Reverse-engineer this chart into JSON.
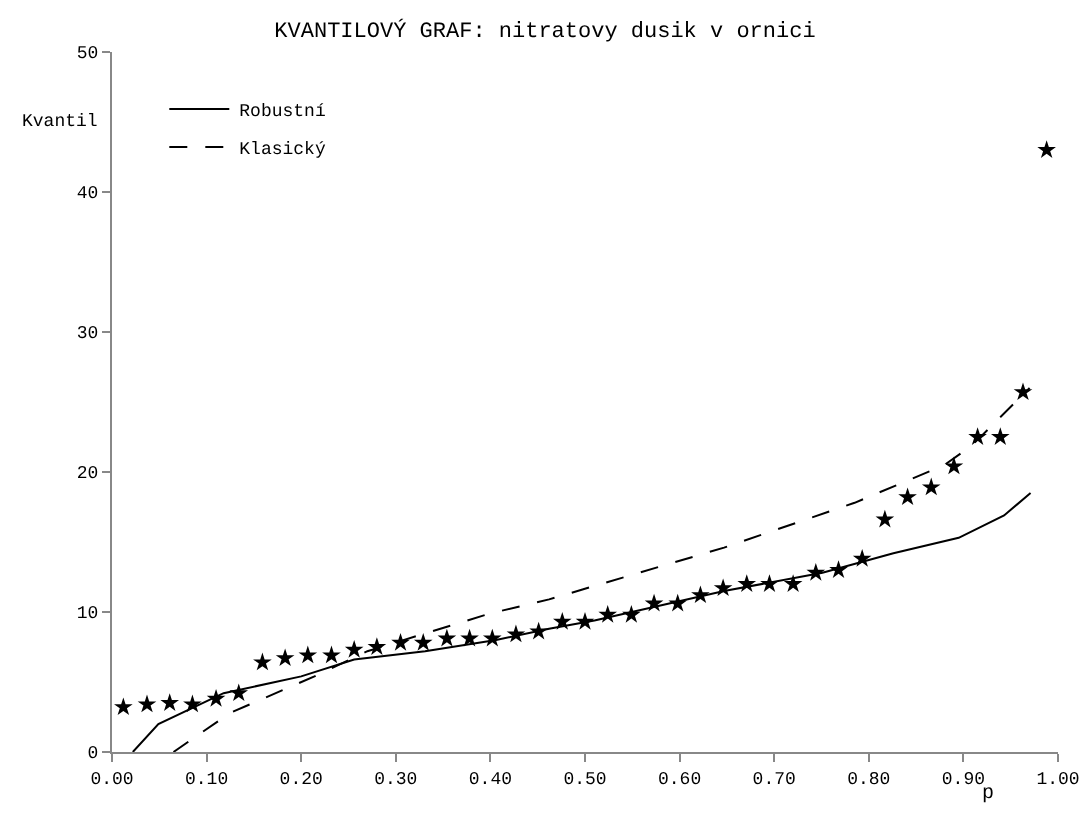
{
  "chart_data": {
    "type": "scatter",
    "title": "KVANTILOVÝ GRAF: nitratovy dusik v ornici",
    "xlabel": "p",
    "ylabel": "Kvantil",
    "xlim": [
      0,
      1
    ],
    "xticks": [
      {
        "value": 0,
        "label": "0.00"
      },
      {
        "value": 0.1,
        "label": "0.10"
      },
      {
        "value": 0.2,
        "label": "0.20"
      },
      {
        "value": 0.3,
        "label": "0.30"
      },
      {
        "value": 0.4,
        "label": "0.40"
      },
      {
        "value": 0.5,
        "label": "0.50"
      },
      {
        "value": 0.6,
        "label": "0.60"
      },
      {
        "value": 0.7,
        "label": "0.70"
      },
      {
        "value": 0.8,
        "label": "0.80"
      },
      {
        "value": 0.9,
        "label": "0.90"
      },
      {
        "value": 1,
        "label": "1.00"
      }
    ],
    "ylim": [
      0,
      50
    ],
    "yticks": [
      0,
      10,
      20,
      30,
      40,
      50
    ],
    "grid": false,
    "legend": "top left",
    "series": [
      {
        "type": "line",
        "name": "Robustní",
        "color": "#000000",
        "line_style": "solid",
        "x": [
          0.022,
          0.049,
          0.118,
          0.2,
          0.256,
          0.331,
          0.406,
          0.462,
          0.51,
          0.647,
          0.751,
          0.826,
          0.895,
          0.943,
          0.971
        ],
        "values": [
          0,
          2,
          4.2,
          5.4,
          6.6,
          7.2,
          8,
          8.8,
          9.4,
          11.5,
          12.8,
          14.2,
          15.3,
          16.9,
          18.5
        ]
      },
      {
        "type": "line",
        "name": "Klasický",
        "color": "#000000",
        "line_style": "dashed",
        "x": [
          0.065,
          0.125,
          0.214,
          0.27,
          0.4,
          0.462,
          0.647,
          0.785,
          0.88,
          0.909,
          0.97
        ],
        "values": [
          0,
          2.8,
          5.4,
          7.2,
          9.9,
          10.9,
          14.6,
          17.8,
          20.5,
          21.9,
          26
        ]
      },
      {
        "marker": "star",
        "color": "#000000",
        "x": [
          0.012,
          0.037,
          0.061,
          0.085,
          0.11,
          0.134,
          0.159,
          0.183,
          0.207,
          0.232,
          0.256,
          0.28,
          0.305,
          0.329,
          0.354,
          0.378,
          0.402,
          0.427,
          0.451,
          0.476,
          0.5,
          0.524,
          0.549,
          0.573,
          0.598,
          0.622,
          0.646,
          0.671,
          0.695,
          0.72,
          0.744,
          0.768,
          0.793,
          0.817,
          0.841,
          0.866,
          0.89,
          0.915,
          0.939,
          0.963,
          0.988
        ],
        "values": [
          3.2,
          3.4,
          3.5,
          3.4,
          3.8,
          4.2,
          6.4,
          6.7,
          6.9,
          6.9,
          7.3,
          7.5,
          7.8,
          7.8,
          8.1,
          8.1,
          8.1,
          8.4,
          8.6,
          9.3,
          9.3,
          9.8,
          9.8,
          10.6,
          10.6,
          11.2,
          11.7,
          12,
          12,
          12,
          12.8,
          13,
          13.8,
          16.6,
          18.2,
          18.9,
          20.4,
          22.5,
          22.5,
          25.7,
          43
        ]
      }
    ]
  }
}
